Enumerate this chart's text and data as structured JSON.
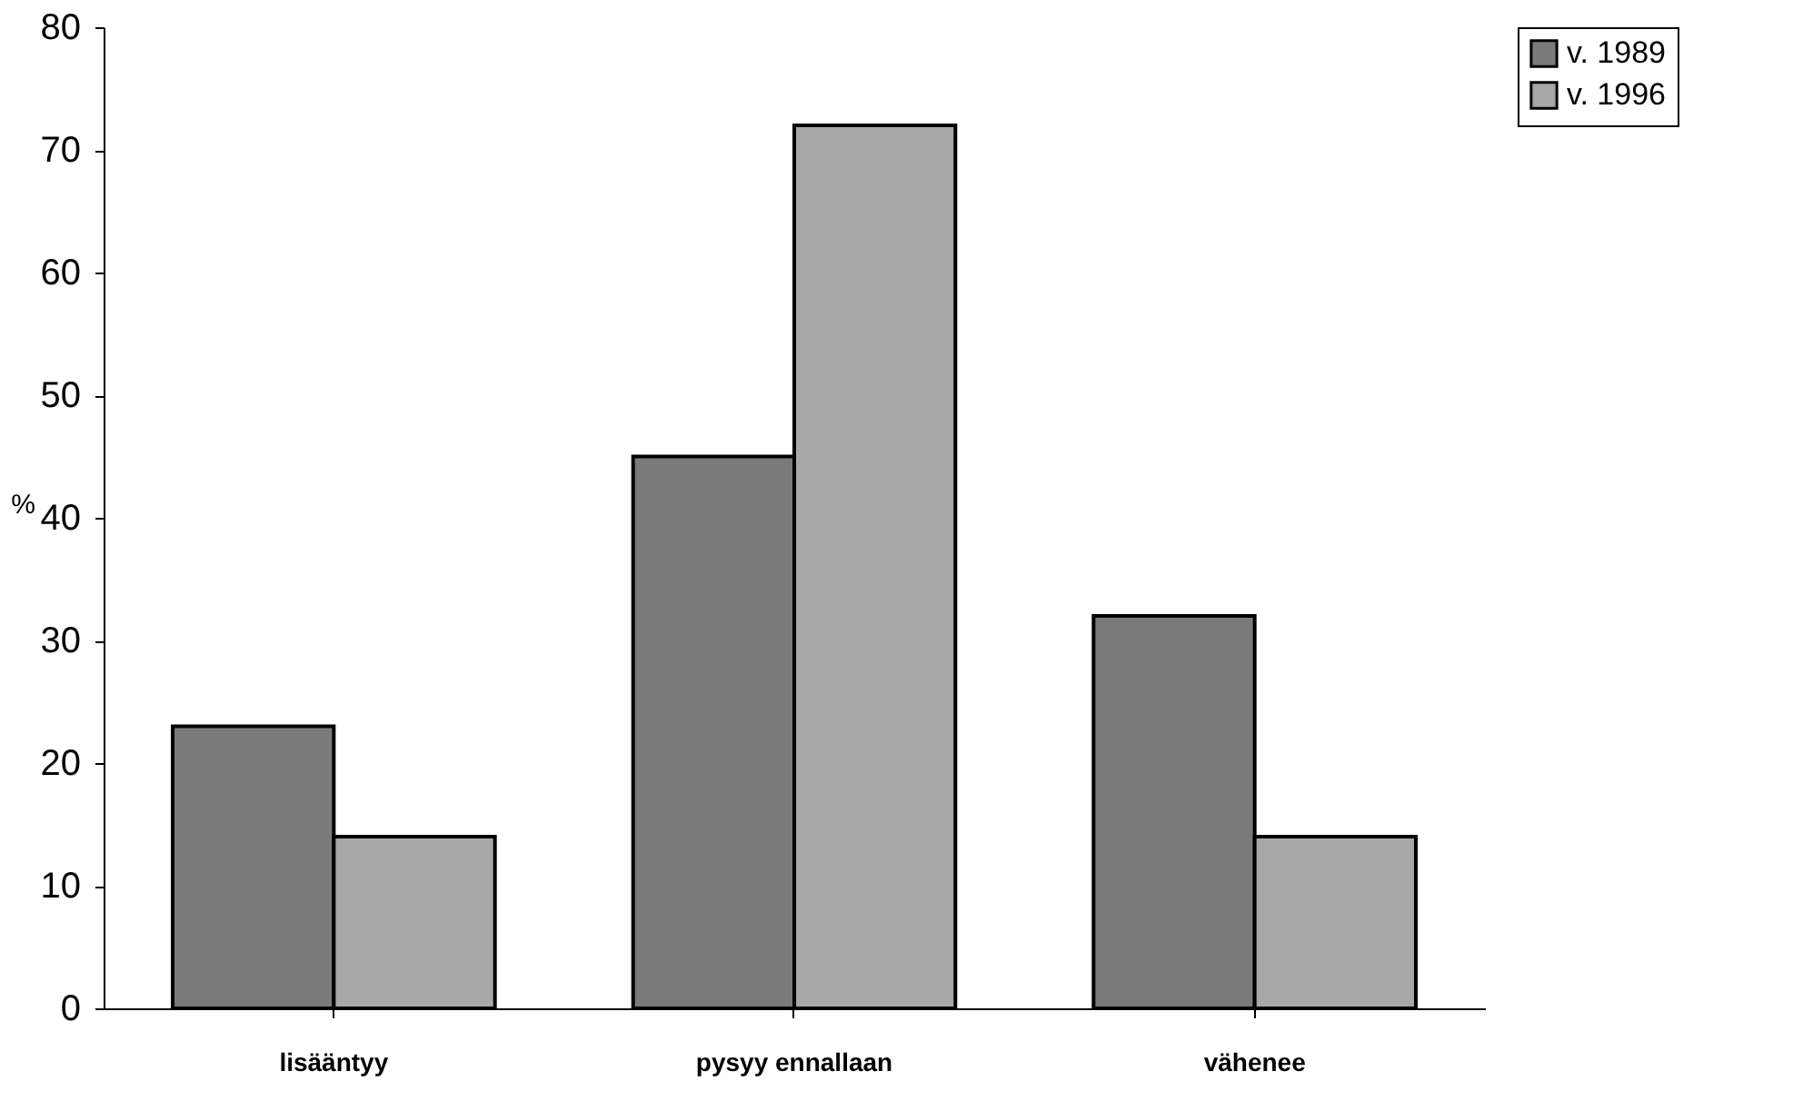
{
  "chart_data": {
    "type": "bar",
    "ylabel": "%",
    "categories": [
      "lisääntyy",
      "pysyy ennallaan",
      "vähenee"
    ],
    "series": [
      {
        "name": "v. 1989",
        "color": "#7a7a7a",
        "values": [
          23,
          45,
          32
        ]
      },
      {
        "name": "v. 1996",
        "color": "#a8a8a8",
        "values": [
          14,
          72,
          14
        ]
      }
    ],
    "ylim": [
      0,
      80
    ],
    "yticks": [
      0,
      10,
      20,
      30,
      40,
      50,
      60,
      70,
      80
    ],
    "grid": false,
    "legend": "right"
  }
}
